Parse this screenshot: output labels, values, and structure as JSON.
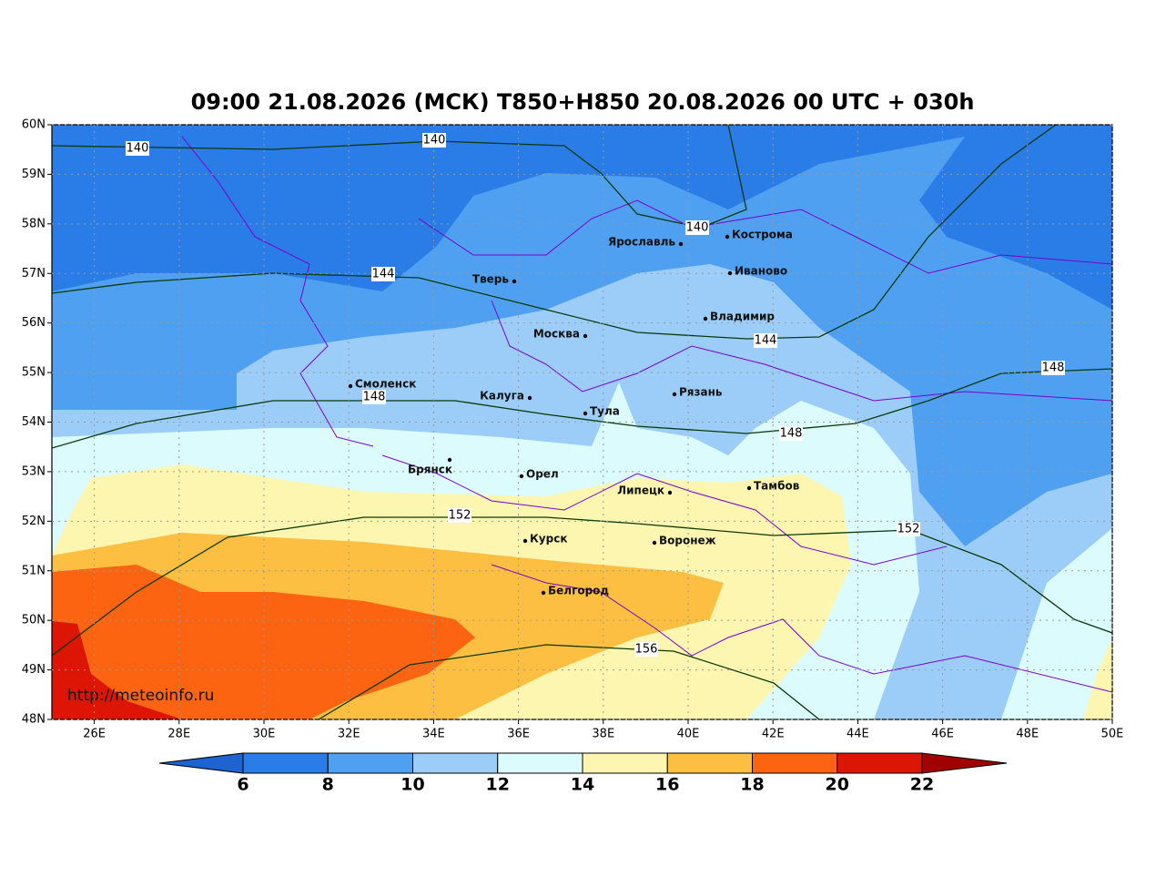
{
  "title": "09:00 21.08.2026 (МСК) T850+H850 20.08.2026 00 UTC + 030h",
  "watermark": "http://meteoinfo.ru",
  "lat_range": [
    48,
    60
  ],
  "lon_range": [
    25,
    50
  ],
  "lat_ticks": [
    {
      "value": 48,
      "label": "48N"
    },
    {
      "value": 49,
      "label": "49N"
    },
    {
      "value": 50,
      "label": "50N"
    },
    {
      "value": 51,
      "label": "51N"
    },
    {
      "value": 52,
      "label": "52N"
    },
    {
      "value": 53,
      "label": "53N"
    },
    {
      "value": 54,
      "label": "54N"
    },
    {
      "value": 55,
      "label": "55N"
    },
    {
      "value": 56,
      "label": "56N"
    },
    {
      "value": 57,
      "label": "57N"
    },
    {
      "value": 58,
      "label": "58N"
    },
    {
      "value": 59,
      "label": "59N"
    },
    {
      "value": 60,
      "label": "60N"
    }
  ],
  "lon_ticks": [
    {
      "value": 26,
      "label": "26E"
    },
    {
      "value": 28,
      "label": "28E"
    },
    {
      "value": 30,
      "label": "30E"
    },
    {
      "value": 32,
      "label": "32E"
    },
    {
      "value": 34,
      "label": "34E"
    },
    {
      "value": 36,
      "label": "36E"
    },
    {
      "value": 38,
      "label": "38E"
    },
    {
      "value": 40,
      "label": "40E"
    },
    {
      "value": 42,
      "label": "42E"
    },
    {
      "value": 44,
      "label": "44E"
    },
    {
      "value": 46,
      "label": "46E"
    },
    {
      "value": 48,
      "label": "48E"
    },
    {
      "value": 50,
      "label": "50E"
    }
  ],
  "cities": [
    "Кострома",
    "Ярославль",
    "Иваново",
    "Тверь",
    "Владимир",
    "Москва",
    "Смоленск",
    "Рязань",
    "Калуга",
    "Тула",
    "Брянск",
    "Орел",
    "Липецк",
    "Тамбов",
    "Курск",
    "Воронеж",
    "Белгород"
  ],
  "isohypse_labels": [
    140,
    140,
    140,
    144,
    144,
    148,
    148,
    148,
    152,
    152,
    156
  ],
  "colorbar": {
    "ticks": [
      6,
      8,
      10,
      12,
      14,
      16,
      18,
      20,
      22
    ],
    "colors": [
      "#2a7de6",
      "#4fa0f0",
      "#9ccdf8",
      "#dcfbfc",
      "#fdf6b0",
      "#fdbf42",
      "#fd6412",
      "#dc1505"
    ],
    "under_color": "#1e63d2",
    "over_color": "#a00000"
  }
}
